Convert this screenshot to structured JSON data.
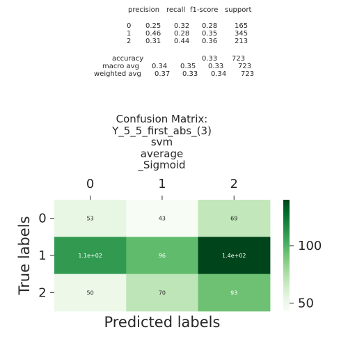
{
  "report": {
    "header": [
      "precision",
      "recall",
      "f1-score",
      "support"
    ],
    "rows": [
      {
        "label": "0",
        "values": [
          "0.25",
          "0.32",
          "0.28",
          "165"
        ]
      },
      {
        "label": "1",
        "values": [
          "0.46",
          "0.28",
          "0.35",
          "345"
        ]
      },
      {
        "label": "2",
        "values": [
          "0.31",
          "0.44",
          "0.36",
          "213"
        ]
      }
    ],
    "accuracy": {
      "label": "accuracy",
      "values": [
        "0.33",
        "723"
      ]
    },
    "macro_avg": {
      "label": "macro avg",
      "values": [
        "0.34",
        "0.35",
        "0.33",
        "723"
      ]
    },
    "weighted_avg": {
      "label": "weighted avg",
      "values": [
        "0.37",
        "0.33",
        "0.34",
        "723"
      ]
    }
  },
  "chart_data": {
    "type": "heatmap",
    "title_lines": [
      "Confusion Matrix:",
      "Y_5_5_first_abs_(3)",
      "svm",
      "average",
      "_Sigmoid"
    ],
    "xlabel": "Predicted labels",
    "ylabel": "True labels",
    "x_categories": [
      "0",
      "1",
      "2"
    ],
    "y_categories": [
      "0",
      "1",
      "2"
    ],
    "values": [
      [
        53,
        43,
        69
      ],
      [
        110,
        96,
        140
      ],
      [
        50,
        70,
        93
      ]
    ],
    "annotations": [
      [
        "53",
        "43",
        "69"
      ],
      [
        "1.1e+02",
        "96",
        "1.4e+02"
      ],
      [
        "50",
        "70",
        "93"
      ]
    ],
    "colormap": "Greens",
    "colorbar": {
      "ticks": [
        50,
        100
      ],
      "range": [
        43,
        140
      ]
    },
    "colors": {
      "text_dark": "#262626",
      "text_light": "#ffffff"
    }
  }
}
